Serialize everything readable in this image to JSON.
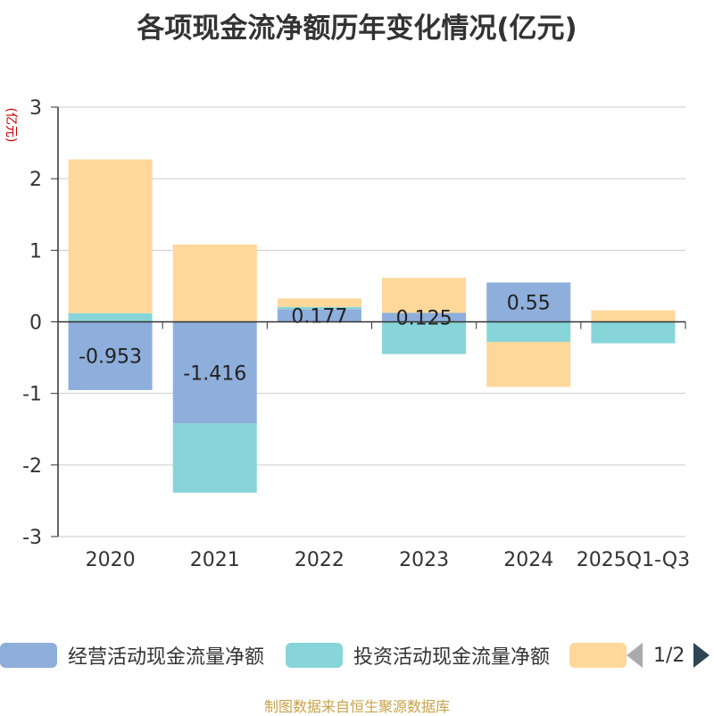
{
  "chart_data": {
    "type": "bar",
    "stacked": true,
    "title": "各项现金流净额历年变化情况(亿元)",
    "ylabel": "(亿元)",
    "ylim": [
      -3,
      3
    ],
    "yticks": [
      3,
      2,
      1,
      0,
      -1,
      -2,
      -3
    ],
    "grid": true,
    "legend_position": "bottom",
    "categories": [
      "2020",
      "2021",
      "2022",
      "2023",
      "2024",
      "2025Q1-Q3"
    ],
    "series": [
      {
        "name": "经营活动现金流量净额",
        "color": "#8eaedb",
        "values": [
          -0.953,
          -1.416,
          0.177,
          0.125,
          0.55,
          0.0
        ],
        "labels": [
          "-0.953",
          "-1.416",
          "0.177",
          "0.125",
          "0.55",
          ""
        ]
      },
      {
        "name": "投资活动现金流量净额",
        "color": "#87d5d8",
        "values": [
          0.12,
          -0.97,
          0.03,
          -0.45,
          -0.28,
          -0.3
        ]
      },
      {
        "name": "",
        "color": "#fdd89a",
        "values": [
          2.15,
          1.08,
          0.12,
          0.49,
          -0.63,
          0.16
        ]
      }
    ]
  },
  "legend": {
    "items": [
      {
        "label": "经营活动现金流量净额",
        "color": "#8eaedb"
      },
      {
        "label": "投资活动现金流量净额",
        "color": "#87d5d8"
      },
      {
        "label": "",
        "color": "#fdd89a"
      }
    ],
    "page": "1/2"
  },
  "source": "制图数据来自恒生聚源数据库"
}
